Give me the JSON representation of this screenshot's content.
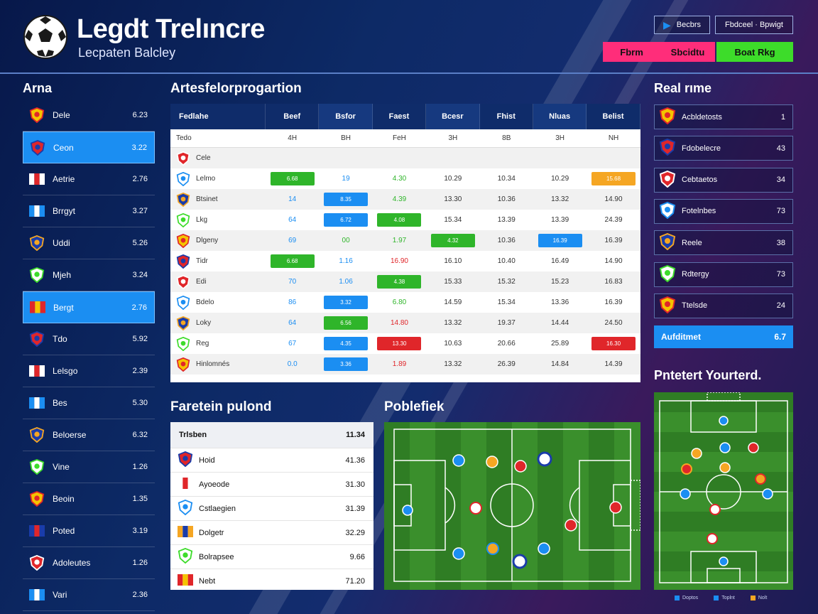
{
  "header": {
    "title": "Legdt Trelıncre",
    "subtitle": "Lecpaten Balcley",
    "btn_a": "Becbrs",
    "btn_b": "Fbdceel · Bpwigt",
    "btn_c": "Fbrm",
    "btn_d": "Sbcidtu",
    "btn_e": "Boat Rkg",
    "colors": {
      "pink": "#ff2d7a",
      "green": "#3ddc2a",
      "accent": "#1b8ef2"
    }
  },
  "sidebar": {
    "title": "Arna",
    "items": [
      {
        "name": "Dele",
        "value": "6.23",
        "icon": "crest-icon",
        "active": false
      },
      {
        "name": "Ceon",
        "value": "3.22",
        "icon": "crest-icon",
        "active": true
      },
      {
        "name": "Aetrie",
        "value": "2.76",
        "icon": "flag-icon",
        "active": false
      },
      {
        "name": "Brrgyt",
        "value": "3.27",
        "icon": "flag-icon",
        "active": false
      },
      {
        "name": "Uddi",
        "value": "5.26",
        "icon": "crest-icon",
        "active": false
      },
      {
        "name": "Mjeh",
        "value": "3.24",
        "icon": "crest-icon",
        "active": false
      },
      {
        "name": "Bergt",
        "value": "2.76",
        "icon": "flag-icon",
        "active": true
      },
      {
        "name": "Tdo",
        "value": "5.92",
        "icon": "crest-icon",
        "active": false
      },
      {
        "name": "Lelsgo",
        "value": "2.39",
        "icon": "flag-icon",
        "active": false
      },
      {
        "name": "Bes",
        "value": "5.30",
        "icon": "flag-icon",
        "active": false
      },
      {
        "name": "Beloerse",
        "value": "6.32",
        "icon": "crest-icon",
        "active": false
      },
      {
        "name": "Vine",
        "value": "1.26",
        "icon": "crest-icon",
        "active": false
      },
      {
        "name": "Beoin",
        "value": "1.35",
        "icon": "crest-icon",
        "active": false
      },
      {
        "name": "Poted",
        "value": "3.19",
        "icon": "flag-icon",
        "active": false
      },
      {
        "name": "Adoleutes",
        "value": "1.26",
        "icon": "crest-icon",
        "active": false
      },
      {
        "name": "Vari",
        "value": "2.36",
        "icon": "flag-icon",
        "active": false
      }
    ]
  },
  "main": {
    "title": "Artesfelorprogartion",
    "headers": [
      "Fedlahe",
      "Beef",
      "Bsfor",
      "Faest",
      "Bcesr",
      "Fhist",
      "Nluas",
      "Belist"
    ],
    "sub": [
      "Tedo",
      "4H",
      "BH",
      "FeH",
      "3H",
      "8B",
      "3H",
      "NH"
    ],
    "rows": [
      {
        "team": "Cele",
        "cells": [
          "",
          "",
          "",
          "",
          "",
          "",
          ""
        ]
      },
      {
        "team": "Lelmo",
        "cells": [
          "6.68",
          "19",
          "4.30",
          "10.29",
          "10.34",
          "10.29",
          "15.68"
        ]
      },
      {
        "team": "Btsinet",
        "cells": [
          "14",
          "8.35",
          "4.39",
          "13.30",
          "10.36",
          "13.32",
          "14.90"
        ]
      },
      {
        "team": "Lkg",
        "cells": [
          "64",
          "6.72",
          "4.08",
          "15.34",
          "13.39",
          "13.39",
          "24.39"
        ]
      },
      {
        "team": "Dlgeny",
        "cells": [
          "69",
          "00",
          "1.97",
          "4.32",
          "10.36",
          "16.39",
          "16.39"
        ]
      },
      {
        "team": "Tidr",
        "cells": [
          "6.68",
          "1.16",
          "16.90",
          "16.10",
          "10.40",
          "16.49",
          "14.90"
        ]
      },
      {
        "team": "Edi",
        "cells": [
          "70",
          "1.06",
          "4.38",
          "15.33",
          "15.32",
          "15.23",
          "16.83"
        ]
      },
      {
        "team": "Bdelo",
        "cells": [
          "86",
          "3.32",
          "6.80",
          "14.59",
          "15.34",
          "13.36",
          "16.39"
        ]
      },
      {
        "team": "Loky",
        "cells": [
          "64",
          "6.56",
          "14.80",
          "13.32",
          "19.37",
          "14.44",
          "24.50"
        ]
      },
      {
        "team": "Reg",
        "cells": [
          "67",
          "4.35",
          "13.30",
          "10.63",
          "20.66",
          "25.89",
          "16.30"
        ]
      },
      {
        "team": "Hinlomnés",
        "cells": [
          "0.0",
          "3.36",
          "1.89",
          "13.32",
          "26.39",
          "14.84",
          "14.39"
        ]
      }
    ]
  },
  "performance": {
    "title": "Faretein pulond",
    "head_label": "Trlsben",
    "head_value": "11.34",
    "rows": [
      {
        "name": "Hoid",
        "value": "41.36"
      },
      {
        "name": "Ayoeode",
        "value": "31.30"
      },
      {
        "name": "Cstlaegien",
        "value": "31.39"
      },
      {
        "name": "Dolgetr",
        "value": "32.29"
      },
      {
        "name": "Bolrapsee",
        "value": "9.66"
      },
      {
        "name": "Nebt",
        "value": "71.20"
      }
    ]
  },
  "pitch": {
    "title": "Poblefiek"
  },
  "right": {
    "title": "Real rıme",
    "items": [
      {
        "name": "Acbldetosts",
        "value": "1"
      },
      {
        "name": "Fdobelecre",
        "value": "43"
      },
      {
        "name": "Cebtaetos",
        "value": "34"
      },
      {
        "name": "Fotelnbes",
        "value": "73"
      },
      {
        "name": "Reele",
        "value": "38"
      },
      {
        "name": "Rdtergy",
        "value": "73"
      },
      {
        "name": "Ttelsde",
        "value": "24"
      }
    ],
    "highlight": {
      "name": "Aufditmet",
      "value": "6.7"
    },
    "formation_title": "Pntetert Yourterd.",
    "legend": [
      "Doptos",
      "Toplnt",
      "Nolt"
    ]
  }
}
